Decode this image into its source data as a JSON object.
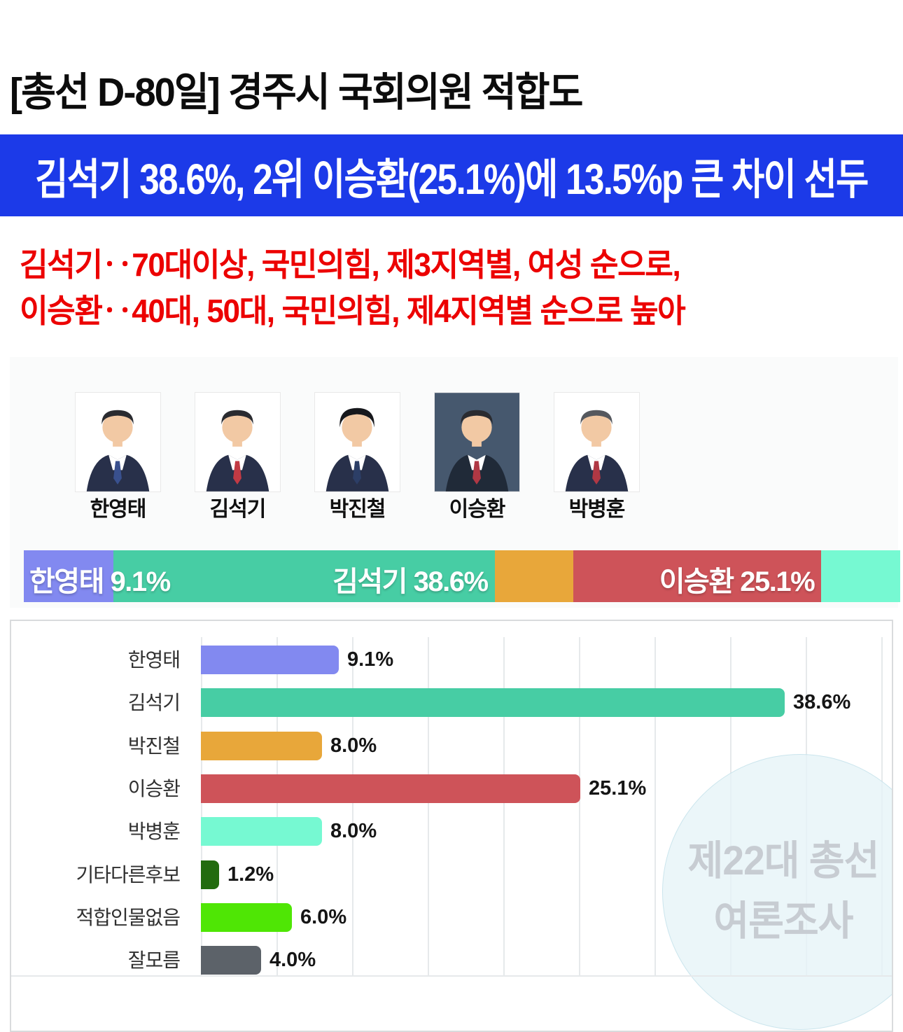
{
  "page": {
    "title": "[총선 D-80일] 경주시 국회의원 적합도",
    "banner": {
      "text": "김석기 38.6%, 2위 이승환(25.1%)에 13.5%p 큰 차이 선두",
      "bg_color": "#1c3ae8",
      "text_color": "#ffffff"
    },
    "insight_lines": [
      "김석기‥70대이상, 국민의힘, 제3지역별, 여성 순으로,",
      "이승환‥40대, 50대, 국민의힘, 제4지역별 순으로 높아"
    ],
    "insight_color": "#ec0000"
  },
  "candidates": [
    {
      "name": "한영태"
    },
    {
      "name": "김석기"
    },
    {
      "name": "박진철"
    },
    {
      "name": "이승환"
    },
    {
      "name": "박병훈"
    }
  ],
  "stacked_bar": {
    "segments": [
      {
        "name": "한영태",
        "value": 9.1,
        "label": "한영태 9.1%",
        "color": "#8289f0"
      },
      {
        "name": "김석기",
        "value": 38.6,
        "label": "김석기 38.6%",
        "color": "#47cda4"
      },
      {
        "name": "박진철",
        "value": 8.0,
        "label": "",
        "color": "#e8a73a"
      },
      {
        "name": "이승환",
        "value": 25.1,
        "label": "이승환 25.1%",
        "color": "#ce5359"
      },
      {
        "name": "박병훈",
        "value": 8.0,
        "label": "",
        "color": "#76f9d2"
      }
    ]
  },
  "chart_data": {
    "type": "bar",
    "orientation": "horizontal",
    "title": "",
    "xlabel": "",
    "ylabel": "",
    "categories": [
      "한영태",
      "김석기",
      "박진철",
      "이승환",
      "박병훈",
      "기타다른후보",
      "적합인물없음",
      "잘모름"
    ],
    "values": [
      9.1,
      38.6,
      8.0,
      25.1,
      8.0,
      1.2,
      6.0,
      4.0
    ],
    "value_labels": [
      "9.1%",
      "38.6%",
      "8.0%",
      "25.1%",
      "8.0%",
      "1.2%",
      "6.0%",
      "4.0%"
    ],
    "colors": [
      "#8289f0",
      "#47cda4",
      "#e8a73a",
      "#ce5359",
      "#76f9d2",
      "#226b0e",
      "#4fe605",
      "#5c6269"
    ],
    "xlim": [
      0,
      45
    ],
    "gridline_step": 5,
    "grid": true,
    "legend": false
  },
  "watermark": {
    "line1": "제22대 총선",
    "line2": "여론조사",
    "text_color": "#c7ccd2"
  }
}
